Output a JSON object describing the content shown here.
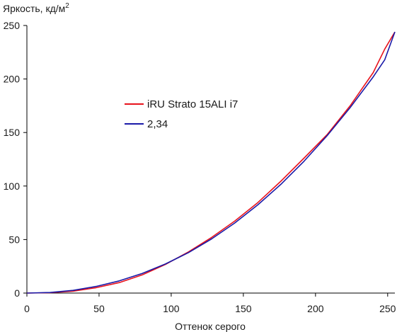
{
  "chart_data": {
    "type": "line",
    "title": "",
    "ylabel_main": "Яркость, кд/м",
    "ylabel_sup": "2",
    "xlabel": "Оттенок серого",
    "xlim": [
      0,
      255
    ],
    "ylim": [
      0,
      250
    ],
    "x_ticks": [
      0,
      50,
      100,
      150,
      200,
      250
    ],
    "y_ticks": [
      0,
      50,
      100,
      150,
      200,
      250
    ],
    "grid": false,
    "legend_position": "center-left",
    "series": [
      {
        "name": "iRU Strato 15ALI i7",
        "color": "#e8121c",
        "points": [
          [
            0,
            0
          ],
          [
            16,
            0.3
          ],
          [
            32,
            1.8
          ],
          [
            48,
            5.0
          ],
          [
            64,
            9.8
          ],
          [
            80,
            17.0
          ],
          [
            96,
            26.8
          ],
          [
            112,
            38.5
          ],
          [
            128,
            52.0
          ],
          [
            144,
            67.2
          ],
          [
            160,
            84.5
          ],
          [
            176,
            104.5
          ],
          [
            192,
            126.0
          ],
          [
            208,
            148.0
          ],
          [
            224,
            175.0
          ],
          [
            240,
            206.0
          ],
          [
            248,
            228.0
          ],
          [
            255,
            244.0
          ]
        ]
      },
      {
        "name": "2,34",
        "color": "#1a1aa8",
        "points": [
          [
            0,
            0
          ],
          [
            16,
            0.5
          ],
          [
            32,
            2.5
          ],
          [
            48,
            6.2
          ],
          [
            64,
            11.4
          ],
          [
            80,
            18.4
          ],
          [
            96,
            27.2
          ],
          [
            112,
            37.8
          ],
          [
            128,
            50.6
          ],
          [
            144,
            65.4
          ],
          [
            160,
            82.4
          ],
          [
            176,
            101.6
          ],
          [
            192,
            123.1
          ],
          [
            208,
            147.0
          ],
          [
            224,
            173.3
          ],
          [
            240,
            202.0
          ],
          [
            248,
            218.0
          ],
          [
            255,
            244.0
          ]
        ]
      }
    ]
  }
}
